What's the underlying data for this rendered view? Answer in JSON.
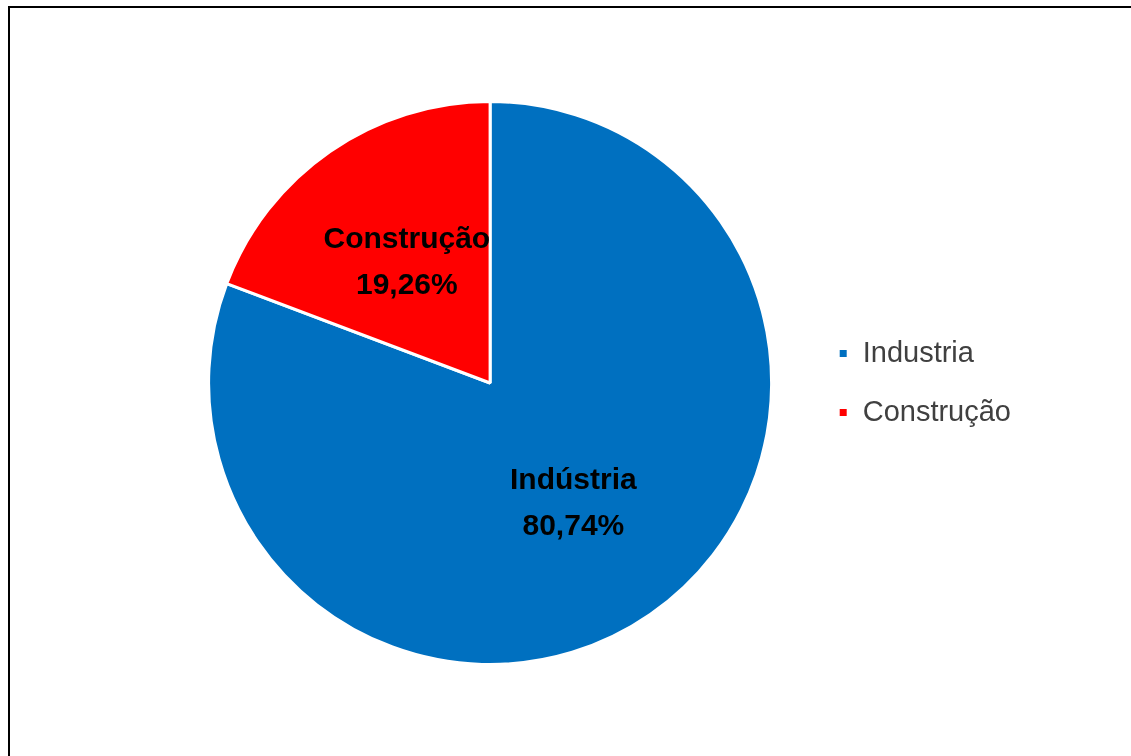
{
  "chart_data": {
    "type": "pie",
    "categories": [
      "Industria",
      "Construção"
    ],
    "values": [
      80.74,
      19.26
    ],
    "colors": [
      "#0070c0",
      "#ff0000"
    ],
    "value_labels": [
      "Indústria\n80,74%",
      "Construção\n19,26%"
    ],
    "legend": "right"
  }
}
